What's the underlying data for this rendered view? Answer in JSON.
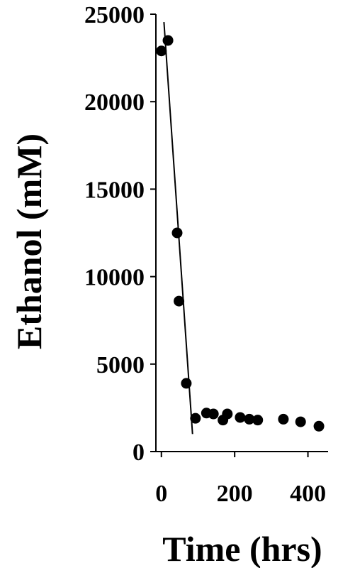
{
  "chart_data": {
    "type": "scatter",
    "xlabel": "Time (hrs)",
    "ylabel": "Ethanol (mM)",
    "xlim": [
      -15,
      455
    ],
    "ylim": [
      0,
      25000
    ],
    "x_ticks": [
      0,
      200,
      400
    ],
    "y_ticks": [
      0,
      5000,
      10000,
      15000,
      20000,
      25000
    ],
    "grid": false,
    "series": [
      {
        "points": [
          {
            "x": 0,
            "y": 22900
          },
          {
            "x": 18,
            "y": 23500
          },
          {
            "x": 43,
            "y": 12500
          },
          {
            "x": 48,
            "y": 8600
          },
          {
            "x": 68,
            "y": 3900
          },
          {
            "x": 93,
            "y": 1900
          },
          {
            "x": 123,
            "y": 2200
          },
          {
            "x": 142,
            "y": 2150
          },
          {
            "x": 168,
            "y": 1800
          },
          {
            "x": 180,
            "y": 2150
          },
          {
            "x": 215,
            "y": 1950
          },
          {
            "x": 240,
            "y": 1850
          },
          {
            "x": 263,
            "y": 1800
          },
          {
            "x": 333,
            "y": 1850
          },
          {
            "x": 380,
            "y": 1700
          },
          {
            "x": 430,
            "y": 1450
          }
        ]
      }
    ],
    "trendline": {
      "x": [
        7,
        85
      ],
      "y": [
        24550,
        1000
      ]
    }
  },
  "colors": {
    "marker": "#000000",
    "axis": "#000000"
  }
}
